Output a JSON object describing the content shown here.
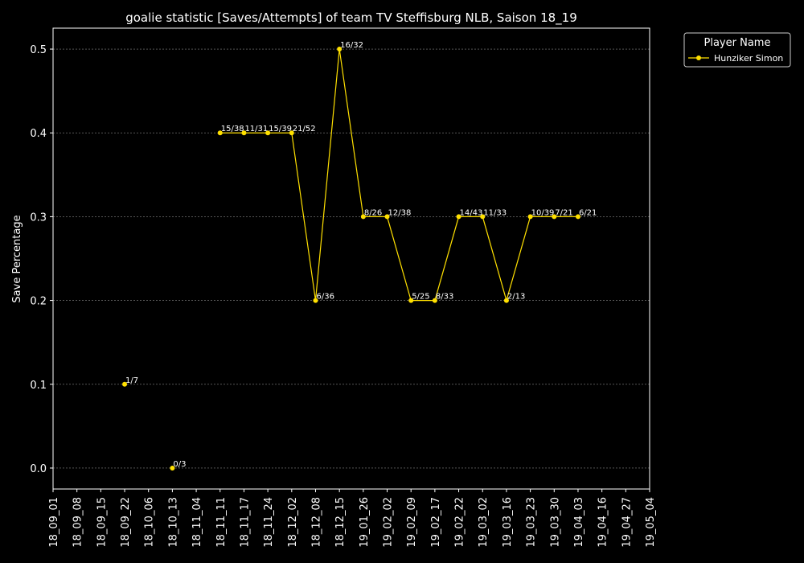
{
  "chart_data": {
    "type": "line",
    "title": "goalie statistic [Saves/Attempts] of team TV Steffisburg NLB, Saison 18_19",
    "xlabel": "",
    "ylabel": "Save Percentage",
    "ylim": [
      -0.025,
      0.525
    ],
    "yticks": [
      0.0,
      0.1,
      0.2,
      0.3,
      0.4,
      0.5
    ],
    "ytick_labels": [
      "0.0",
      "0.1",
      "0.2",
      "0.3",
      "0.4",
      "0.5"
    ],
    "categories": [
      "18_09_01",
      "18_09_08",
      "18_09_15",
      "18_09_22",
      "18_10_06",
      "18_10_13",
      "18_11_04",
      "18_11_11",
      "18_11_17",
      "18_11_24",
      "18_12_02",
      "18_12_08",
      "18_12_15",
      "19_01_26",
      "19_02_02",
      "19_02_09",
      "19_02_17",
      "19_02_22",
      "19_03_02",
      "19_03_16",
      "19_03_23",
      "19_03_30",
      "19_04_03",
      "19_04_16",
      "19_04_27",
      "19_05_04"
    ],
    "grid": true,
    "legend": {
      "title": "Player Name",
      "position": "top-right-outside"
    },
    "series": [
      {
        "name": "Hunziker Simon",
        "color": "#ffe000",
        "values": [
          null,
          null,
          null,
          0.1,
          null,
          0.0,
          null,
          0.4,
          0.4,
          0.4,
          0.4,
          0.2,
          0.5,
          0.3,
          0.3,
          0.2,
          0.2,
          0.3,
          0.3,
          0.2,
          0.3,
          0.3,
          0.3,
          null,
          null,
          null
        ],
        "labels": [
          null,
          null,
          null,
          "1/7",
          null,
          "0/3",
          null,
          "15/38",
          "11/31",
          "15/39",
          "21/52",
          "6/36",
          "16/32",
          "8/26",
          "12/38",
          "5/25",
          "8/33",
          "14/43",
          "11/33",
          "2/13",
          "10/39",
          "7/21",
          "6/21",
          null,
          null,
          null
        ]
      }
    ]
  }
}
